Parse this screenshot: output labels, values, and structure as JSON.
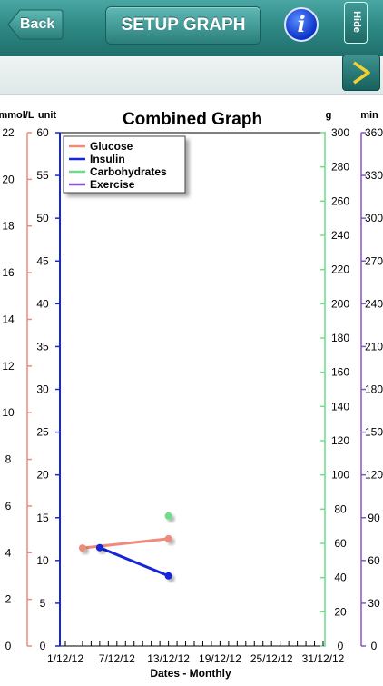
{
  "header": {
    "back_label": "Back",
    "setup_label": "SETUP GRAPH",
    "info_label": "i",
    "hide_label": "Hide"
  },
  "colors": {
    "glucose": "#f08a7a",
    "insulin": "#1626d8",
    "carbohydrates": "#6fdc8c",
    "exercise": "#8a52c7",
    "header": "#2f8a86"
  },
  "chart_data": {
    "type": "line",
    "title": "Combined Graph",
    "xlabel": "Dates - Monthly",
    "x_ticks": [
      "1/12/12",
      "7/12/12",
      "13/12/12",
      "19/12/12",
      "25/12/12",
      "31/12/12"
    ],
    "axes": {
      "glucose": {
        "unit": "mmol/L",
        "ylim": [
          0,
          22
        ],
        "ticks": [
          0,
          2,
          4,
          6,
          8,
          10,
          12,
          14,
          16,
          18,
          20,
          22
        ]
      },
      "insulin": {
        "unit": "unit",
        "ylim": [
          0,
          60
        ],
        "ticks": [
          0,
          5,
          10,
          15,
          20,
          25,
          30,
          35,
          40,
          45,
          50,
          55,
          60
        ]
      },
      "carbohydrates": {
        "unit": "g",
        "ylim": [
          0,
          300
        ],
        "ticks": [
          0,
          20,
          40,
          60,
          80,
          100,
          120,
          140,
          160,
          180,
          200,
          220,
          240,
          260,
          280,
          300
        ]
      },
      "exercise": {
        "unit": "min",
        "ylim": [
          0,
          360
        ],
        "ticks": [
          0,
          30,
          60,
          90,
          120,
          150,
          180,
          210,
          240,
          270,
          300,
          330,
          360
        ]
      }
    },
    "legend": {
      "position": "top-left",
      "entries": [
        "Glucose",
        "Insulin",
        "Carbohydrates",
        "Exercise"
      ]
    },
    "series": [
      {
        "name": "Glucose",
        "axis": "glucose",
        "points": [
          {
            "x": "3/12/12",
            "y": 4.2
          },
          {
            "x": "13/12/12",
            "y": 4.6
          }
        ]
      },
      {
        "name": "Insulin",
        "axis": "insulin",
        "points": [
          {
            "x": "5/12/12",
            "y": 11.5
          },
          {
            "x": "13/12/12",
            "y": 8.2
          }
        ]
      },
      {
        "name": "Carbohydrates",
        "axis": "carbohydrates",
        "points": [
          {
            "x": "13/12/12",
            "y": 76
          }
        ]
      },
      {
        "name": "Exercise",
        "axis": "exercise",
        "points": []
      }
    ]
  }
}
